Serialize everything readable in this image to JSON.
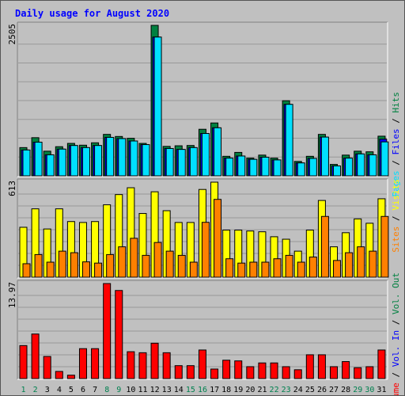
{
  "chart_data": {
    "title": "Daily usage for August 2020",
    "type": "bar",
    "days": [
      "1",
      "2",
      "3",
      "4",
      "5",
      "6",
      "7",
      "8",
      "9",
      "10",
      "11",
      "12",
      "13",
      "14",
      "15",
      "16",
      "17",
      "18",
      "19",
      "20",
      "21",
      "22",
      "23",
      "24",
      "25",
      "26",
      "27",
      "28",
      "29",
      "30",
      "31"
    ],
    "weekend_days": [
      "1",
      "2",
      "8",
      "9",
      "15",
      "16",
      "22",
      "23",
      "29",
      "30"
    ],
    "legend": {
      "hits": "Hits",
      "files": "Files",
      "pages": "Pages",
      "visits": "Visits",
      "sites": "Sites",
      "vol_out": "Vol. Out",
      "vol_in": "Vol. In",
      "volume": "Volume",
      "sep": " / "
    },
    "panels": [
      {
        "name": "hits-files-pages",
        "max_label": "2505",
        "max": 2505,
        "series": [
          {
            "key": "hits",
            "color": "#008040",
            "values": [
              470,
              635,
              410,
              485,
              540,
              510,
              550,
              690,
              655,
              625,
              540,
              2505,
              490,
              500,
              505,
              775,
              880,
              325,
              390,
              295,
              345,
              295,
              1250,
              240,
              325,
              690,
              190,
              345,
              410,
              400,
              660
            ]
          },
          {
            "key": "files",
            "color": "#0000ff",
            "values": [
              430,
              560,
              350,
              445,
              505,
              470,
              505,
              640,
              620,
              580,
              520,
              2310,
              455,
              440,
              470,
              705,
              800,
              295,
              330,
              275,
              310,
              265,
              1190,
              215,
              290,
              645,
              165,
              295,
              365,
              350,
              610
            ]
          },
          {
            "key": "pages",
            "color": "#00e0ff",
            "values": [
              430,
              560,
              350,
              445,
              505,
              470,
              505,
              640,
              620,
              580,
              520,
              2310,
              455,
              440,
              470,
              705,
              800,
              295,
              330,
              275,
              310,
              265,
              1190,
              215,
              290,
              645,
              165,
              295,
              365,
              350,
              565
            ]
          }
        ]
      },
      {
        "name": "visits-sites",
        "max_label": "613",
        "max": 613,
        "series": [
          {
            "key": "visits",
            "color": "#ffff00",
            "values": [
              322,
              441,
              311,
              441,
              359,
              353,
              359,
              467,
              533,
              577,
              411,
              551,
              429,
              353,
              353,
              566,
              613,
              304,
              304,
              298,
              293,
              261,
              245,
              168,
              304,
              495,
              196,
              287,
              376,
              348,
              506
            ]
          },
          {
            "key": "sites",
            "color": "#ff8000",
            "values": [
              87,
              146,
              97,
              168,
              158,
              99,
              91,
              146,
              196,
              251,
              141,
              224,
              168,
              141,
              97,
              354,
              502,
              119,
              91,
              97,
              97,
              119,
              141,
              97,
              130,
              392,
              108,
              158,
              196,
              168,
              392
            ]
          }
        ]
      },
      {
        "name": "volume",
        "max_label": "13.97",
        "max": 13.97,
        "series": [
          {
            "key": "volume",
            "color": "#ff0000",
            "values": [
              4.85,
              6.55,
              3.25,
              1.05,
              0.5,
              4.4,
              4.4,
              13.97,
              12.95,
              3.95,
              3.8,
              5.2,
              3.8,
              1.9,
              1.9,
              4.2,
              1.4,
              2.7,
              2.6,
              1.75,
              2.3,
              2.3,
              1.75,
              1.3,
              3.5,
              3.5,
              1.75,
              2.5,
              1.6,
              1.75,
              4.2
            ]
          }
        ]
      }
    ]
  },
  "colors": {
    "title": "#0000ff",
    "weekday_label": "#000000",
    "weekend_label": "#00804f",
    "legend_hits": "#008040",
    "legend_files": "#0000ff",
    "legend_pages": "#00e0ff",
    "legend_visits": "#ffff00",
    "legend_sites": "#ff8000",
    "legend_vol_out": "#008040",
    "legend_vol_in": "#0000ff",
    "legend_volume": "#ff0000",
    "legend_sep": "#000000",
    "grid": "#999999",
    "panel_bg": "#c0c0c0"
  }
}
